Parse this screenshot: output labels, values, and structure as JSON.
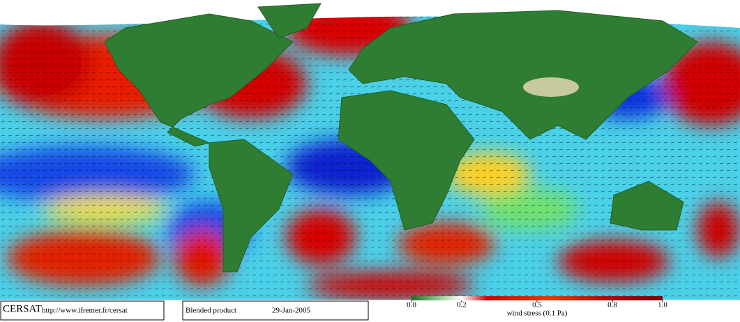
{
  "footer": {
    "logo": "CERSAT",
    "url": "http://www.ifremer.fr/cersat",
    "product": "Blended product",
    "date": "29-Jan-2005"
  },
  "colorbar": {
    "label": "wind stress (0.1 Pa)",
    "lim": [
      0,
      1
    ],
    "ticks": [
      {
        "value": 0,
        "label": "0.0"
      },
      0.2,
      0.5,
      0.8,
      {
        "value": 1,
        "label": "1.0"
      }
    ]
  }
}
